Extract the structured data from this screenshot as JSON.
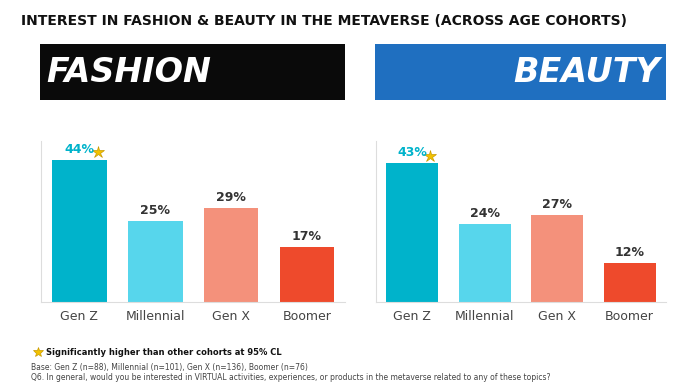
{
  "title": "INTEREST IN FASHION & BEAUTY IN THE METAVERSE (ACROSS AGE COHORTS)",
  "chart_data": [
    {
      "type": "bar",
      "title": "FASHION",
      "categories": [
        "Gen Z",
        "Millennial",
        "Gen X",
        "Boomer"
      ],
      "values": [
        44,
        25,
        29,
        17
      ],
      "value_labels": [
        "44%",
        "25%",
        "29%",
        "17%"
      ],
      "colors": [
        "#00B3CB",
        "#57D6EC",
        "#F4917B",
        "#EE4A2C"
      ],
      "significant": [
        "Gen Z"
      ],
      "data_labels": true,
      "tick_labels": "x",
      "ylim": [
        0,
        50
      ],
      "yticks": []
    },
    {
      "type": "bar",
      "title": "BEAUTY",
      "categories": [
        "Gen Z",
        "Millennial",
        "Gen X",
        "Boomer"
      ],
      "values": [
        43,
        24,
        27,
        12
      ],
      "value_labels": [
        "43%",
        "24%",
        "27%",
        "12%"
      ],
      "colors": [
        "#00B3CB",
        "#57D6EC",
        "#F4917B",
        "#EE4A2C"
      ],
      "significant": [
        "Gen Z"
      ],
      "data_labels": true,
      "tick_labels": "x",
      "ylim": [
        0,
        50
      ],
      "yticks": []
    }
  ],
  "notes": [
    "Significantly higher than other cohorts at 95% CL",
    "Base: Gen Z (n=88), Millennial (n=101), Gen X (n=136), Boomer (n=76)",
    "Q6. In general, would you be interested in VIRTUAL activities, experiences, or products in the metaverse related to any of these topics?"
  ]
}
